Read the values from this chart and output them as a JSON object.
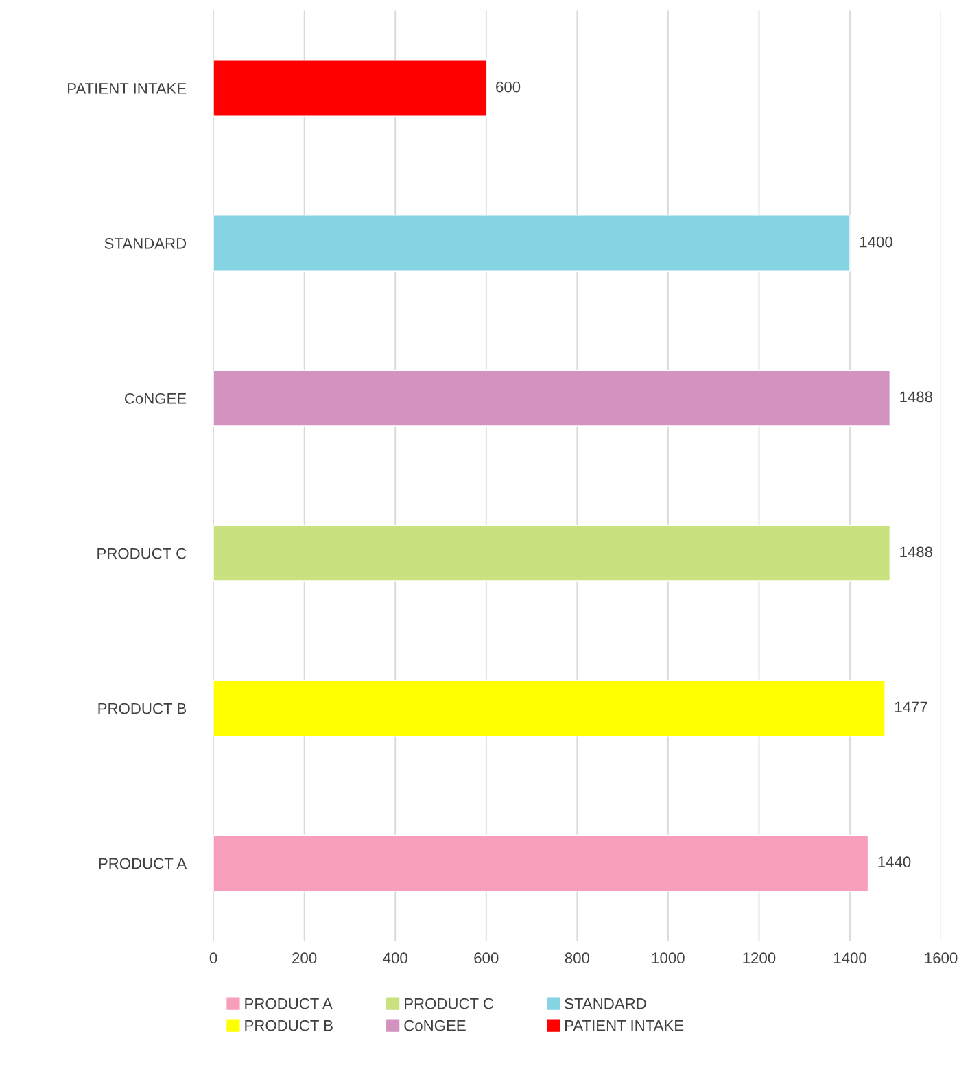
{
  "chart_data": {
    "type": "bar",
    "orientation": "horizontal",
    "categories": [
      "PATIENT INTAKE",
      "STANDARD",
      "CoNGEE",
      "PRODUCT C",
      "PRODUCT B",
      "PRODUCT A"
    ],
    "series": [
      {
        "name": "PRODUCT A",
        "color": "#f79fba",
        "values": [
          null,
          null,
          null,
          null,
          null,
          1440
        ]
      },
      {
        "name": "PRODUCT B",
        "color": "#ffff00",
        "values": [
          null,
          null,
          null,
          null,
          1477,
          null
        ]
      },
      {
        "name": "PRODUCT C",
        "color": "#c9e17f",
        "values": [
          null,
          null,
          null,
          1488,
          null,
          null
        ]
      },
      {
        "name": "CoNGEE",
        "color": "#d393c0",
        "values": [
          null,
          null,
          1488,
          null,
          null,
          null
        ]
      },
      {
        "name": "STANDARD",
        "color": "#85d3e3",
        "values": [
          null,
          1400,
          null,
          null,
          null,
          null
        ]
      },
      {
        "name": "PATIENT INTAKE",
        "color": "#ff0000",
        "values": [
          600,
          null,
          null,
          null,
          null,
          null
        ]
      }
    ],
    "xlim": [
      0,
      1600
    ],
    "xticks": [
      0,
      200,
      400,
      600,
      800,
      1000,
      1200,
      1400,
      1600
    ],
    "grid": "x",
    "legend": "bottom",
    "data_labels": true
  }
}
